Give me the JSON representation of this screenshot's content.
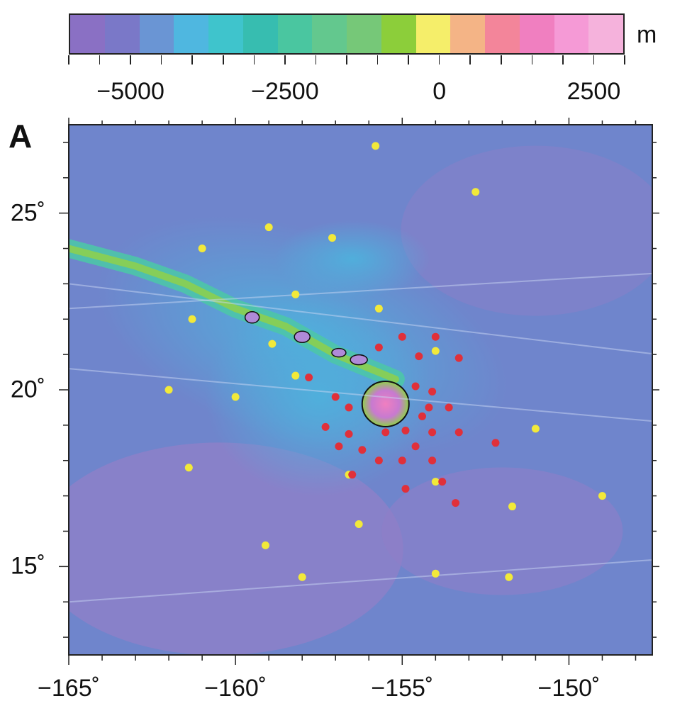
{
  "panel_label": "A",
  "colorbar": {
    "unit": "m",
    "ticks": [
      "−5000",
      "−2500",
      "0",
      "2500"
    ],
    "range": [
      -6000,
      3000
    ],
    "colors": [
      "#8a70c4",
      "#7a78c8",
      "#6a95d4",
      "#4fb7e0",
      "#3fc4cc",
      "#37bdb0",
      "#4ac6a0",
      "#63c88e",
      "#76c878",
      "#8cce3a",
      "#f5ee6a",
      "#f4b486",
      "#f3859a",
      "#f07fc0",
      "#f59ad6",
      "#f5b2dc"
    ]
  },
  "map": {
    "x_ticks": [
      "−165˚",
      "−160˚",
      "−155˚",
      "−150˚"
    ],
    "y_ticks": [
      "25˚",
      "20˚",
      "15˚"
    ],
    "lon_range": [
      -165,
      -147.5
    ],
    "lat_range": [
      12.5,
      27.5
    ],
    "colors": {
      "ocean": "#6f85cc",
      "deep": "#8f7fc8",
      "shallow": "#4fb0dc",
      "ridge": "#4cc5a8",
      "land_low": "#8fd04a",
      "land_high": "#f07fc0",
      "yellow_dot": "#f2e93a",
      "red_dot": "#e0303a"
    },
    "yellow_stations": [
      [
        -155.8,
        26.9
      ],
      [
        -152.8,
        25.6
      ],
      [
        -159.0,
        24.6
      ],
      [
        -157.1,
        24.3
      ],
      [
        -161.0,
        24.0
      ],
      [
        -158.2,
        22.7
      ],
      [
        -155.7,
        22.3
      ],
      [
        -161.3,
        22.0
      ],
      [
        -158.9,
        21.3
      ],
      [
        -154.0,
        21.1
      ],
      [
        -158.2,
        20.4
      ],
      [
        -162.0,
        20.0
      ],
      [
        -160.0,
        19.8
      ],
      [
        -151.0,
        18.9
      ],
      [
        -161.4,
        17.8
      ],
      [
        -156.6,
        17.6
      ],
      [
        -154.0,
        17.4
      ],
      [
        -149.0,
        17.0
      ],
      [
        -151.7,
        16.7
      ],
      [
        -156.3,
        16.2
      ],
      [
        -159.1,
        15.6
      ],
      [
        -158.0,
        14.7
      ],
      [
        -154.0,
        14.8
      ],
      [
        -151.8,
        14.7
      ]
    ],
    "red_stations": [
      [
        -155.0,
        21.5
      ],
      [
        -154.0,
        21.5
      ],
      [
        -155.7,
        21.2
      ],
      [
        -154.5,
        20.95
      ],
      [
        -153.3,
        20.9
      ],
      [
        -157.8,
        20.35
      ],
      [
        -154.6,
        20.1
      ],
      [
        -154.1,
        19.95
      ],
      [
        -157.0,
        19.8
      ],
      [
        -156.6,
        19.5
      ],
      [
        -154.2,
        19.5
      ],
      [
        -153.6,
        19.5
      ],
      [
        -154.4,
        19.25
      ],
      [
        -157.3,
        18.95
      ],
      [
        -156.6,
        18.75
      ],
      [
        -155.5,
        18.8
      ],
      [
        -154.9,
        18.85
      ],
      [
        -154.1,
        18.8
      ],
      [
        -153.3,
        18.8
      ],
      [
        -156.9,
        18.4
      ],
      [
        -154.6,
        18.4
      ],
      [
        -152.2,
        18.5
      ],
      [
        -156.2,
        18.3
      ],
      [
        -155.7,
        18.0
      ],
      [
        -155.0,
        18.0
      ],
      [
        -154.1,
        18.0
      ],
      [
        -156.5,
        17.6
      ],
      [
        -153.8,
        17.4
      ],
      [
        -154.9,
        17.2
      ],
      [
        -153.4,
        16.8
      ]
    ]
  }
}
